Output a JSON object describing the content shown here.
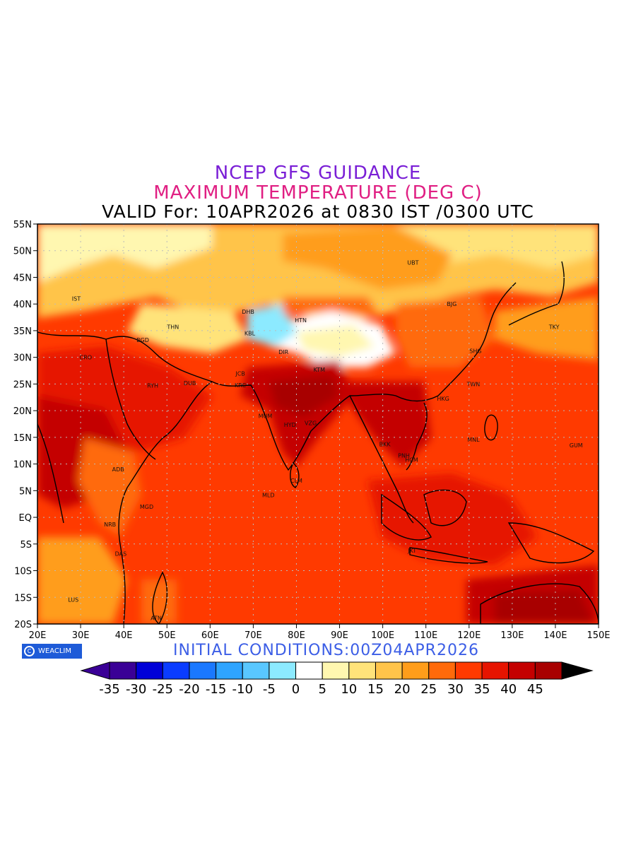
{
  "titles": {
    "line1": "NCEP GFS GUIDANCE",
    "line2": "MAXIMUM TEMPERATURE (DEG C)",
    "line3": "VALID For: 10APR2026 at 0830 IST /0300 UTC"
  },
  "colors": {
    "title1": "#7a1fd6",
    "title2": "#e01f83",
    "init": "#3c5ee6",
    "badge": "#1e5bd8"
  },
  "axes": {
    "lon_labels": [
      "20E",
      "30E",
      "40E",
      "50E",
      "60E",
      "70E",
      "80E",
      "90E",
      "100E",
      "110E",
      "120E",
      "130E",
      "140E",
      "150E"
    ],
    "lat_labels": [
      "55N",
      "50N",
      "45N",
      "40N",
      "35N",
      "30N",
      "25N",
      "20N",
      "15N",
      "10N",
      "5N",
      "EQ",
      "5S",
      "10S",
      "15S",
      "20S"
    ],
    "lon_range": [
      20,
      150
    ],
    "lat_range": [
      -20,
      55
    ],
    "grid": "dotted"
  },
  "cities": [
    {
      "code": "UBT",
      "lon": 107,
      "lat": 47.8
    },
    {
      "code": "BJG",
      "lon": 116,
      "lat": 40
    },
    {
      "code": "TKY",
      "lon": 139.7,
      "lat": 35.7
    },
    {
      "code": "SHG",
      "lon": 121.5,
      "lat": 31.2
    },
    {
      "code": "TWN",
      "lon": 121,
      "lat": 25
    },
    {
      "code": "HKG",
      "lon": 114,
      "lat": 22.3
    },
    {
      "code": "MNL",
      "lon": 121,
      "lat": 14.6
    },
    {
      "code": "GUM",
      "lon": 144.8,
      "lat": 13.5
    },
    {
      "code": "IST",
      "lon": 29,
      "lat": 41
    },
    {
      "code": "THN",
      "lon": 51.4,
      "lat": 35.7
    },
    {
      "code": "BGD",
      "lon": 44.4,
      "lat": 33.3
    },
    {
      "code": "CRO",
      "lon": 31.2,
      "lat": 30
    },
    {
      "code": "RYH",
      "lon": 46.7,
      "lat": 24.7
    },
    {
      "code": "DUB",
      "lon": 55.3,
      "lat": 25.2
    },
    {
      "code": "DHB",
      "lon": 68.8,
      "lat": 38.6
    },
    {
      "code": "KBL",
      "lon": 69.2,
      "lat": 34.5
    },
    {
      "code": "HTN",
      "lon": 81,
      "lat": 37
    },
    {
      "code": "DIR",
      "lon": 77,
      "lat": 31
    },
    {
      "code": "JCB",
      "lon": 67,
      "lat": 27
    },
    {
      "code": "KRC",
      "lon": 67,
      "lat": 24.8
    },
    {
      "code": "KTM",
      "lon": 85.3,
      "lat": 27.7
    },
    {
      "code": "MUM",
      "lon": 72.8,
      "lat": 19
    },
    {
      "code": "HYD",
      "lon": 78.5,
      "lat": 17.4
    },
    {
      "code": "VZG",
      "lon": 83.3,
      "lat": 17.7
    },
    {
      "code": "BKK",
      "lon": 100.5,
      "lat": 13.7
    },
    {
      "code": "HCM",
      "lon": 106.7,
      "lat": 10.8
    },
    {
      "code": "PNH",
      "lon": 104.9,
      "lat": 11.6
    },
    {
      "code": "CLM",
      "lon": 80,
      "lat": 6.9
    },
    {
      "code": "MLD",
      "lon": 73.5,
      "lat": 4.2
    },
    {
      "code": "ADB",
      "lon": 38.7,
      "lat": 9
    },
    {
      "code": "MGD",
      "lon": 45.3,
      "lat": 2
    },
    {
      "code": "NRB",
      "lon": 36.8,
      "lat": -1.3
    },
    {
      "code": "DAS",
      "lon": 39.3,
      "lat": -6.8
    },
    {
      "code": "LUS",
      "lon": 28.3,
      "lat": -15.4
    },
    {
      "code": "ATN",
      "lon": 47.5,
      "lat": -18.9
    },
    {
      "code": "JKT",
      "lon": 106.8,
      "lat": -6.2
    }
  ],
  "colorbar": {
    "labels": [
      "-35",
      "-30",
      "-25",
      "-20",
      "-15",
      "-10",
      "-5",
      "0",
      "5",
      "10",
      "15",
      "20",
      "25",
      "30",
      "35",
      "40",
      "45"
    ],
    "colors": [
      "#3a0096",
      "#0000d8",
      "#0a3cff",
      "#1a78ff",
      "#2ea4ff",
      "#59c7ff",
      "#8ceaff",
      "#ffffff",
      "#fff7b0",
      "#ffe37a",
      "#ffc44a",
      "#ff9d1a",
      "#ff6a0a",
      "#ff3a00",
      "#e61400",
      "#c40000",
      "#a80000"
    ],
    "over_color": "#000000",
    "under_color": "#3a0096"
  },
  "badge": "WEACLIM",
  "initial_conditions": "INITIAL CONDITIONS:00Z04APR2026"
}
